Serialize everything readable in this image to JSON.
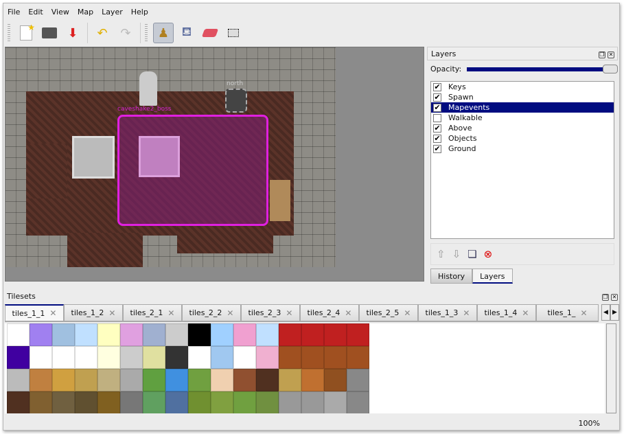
{
  "menu": [
    "File",
    "Edit",
    "View",
    "Map",
    "Layer",
    "Help"
  ],
  "toolbar": {
    "icons": [
      "new-icon",
      "open-icon",
      "save-icon",
      "undo-icon",
      "redo-icon",
      "stamp-brush-icon",
      "bucket-fill-icon",
      "eraser-icon",
      "rect-select-icon"
    ],
    "active": "stamp-brush-icon"
  },
  "map": {
    "object_label": "caveshake2_boss",
    "north_label": "north",
    "selection_color": "#e020e0"
  },
  "layers_panel": {
    "title": "Layers",
    "opacity_label": "Opacity:",
    "opacity": 1.0,
    "layers": [
      {
        "name": "Keys",
        "visible": true
      },
      {
        "name": "Spawn",
        "visible": true
      },
      {
        "name": "Mapevents",
        "visible": true,
        "selected": true
      },
      {
        "name": "Walkable",
        "visible": false
      },
      {
        "name": "Above",
        "visible": true
      },
      {
        "name": "Objects",
        "visible": true
      },
      {
        "name": "Ground",
        "visible": true
      }
    ],
    "tabs": [
      "History",
      "Layers"
    ],
    "active_tab": "Layers",
    "accent": "#000c80"
  },
  "tilesets": {
    "title": "Tilesets",
    "tabs": [
      "tiles_1_1",
      "tiles_1_2",
      "tiles_2_1",
      "tiles_2_2",
      "tiles_2_3",
      "tiles_2_4",
      "tiles_2_5",
      "tiles_1_3",
      "tiles_1_4",
      "tiles_1_"
    ],
    "active": "tiles_1_1"
  },
  "status": {
    "zoom": "100%"
  }
}
